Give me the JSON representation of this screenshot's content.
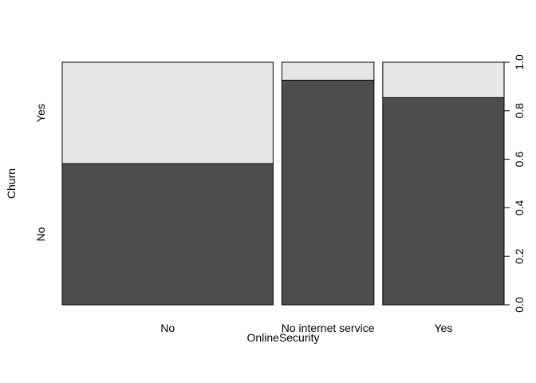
{
  "chart_data": {
    "type": "mosaic",
    "xlabel": "OnlineSecurity",
    "ylabel": "Churn",
    "categories": [
      "No",
      "No internet service",
      "Yes"
    ],
    "category_proportions": [
      0.497,
      0.217,
      0.286
    ],
    "y_levels": [
      "No",
      "Yes"
    ],
    "series": [
      {
        "name": "No",
        "values": [
          0.582,
          0.926,
          0.854
        ]
      },
      {
        "name": "Yes",
        "values": [
          0.418,
          0.074,
          0.146
        ]
      }
    ],
    "ylim": [
      0,
      1
    ],
    "y_ticks": [
      "0.0",
      "0.2",
      "0.4",
      "0.6",
      "0.8",
      "1.0"
    ],
    "colors": {
      "No": "#4d4d4d",
      "Yes": "#e6e6e6"
    },
    "grid": false
  }
}
